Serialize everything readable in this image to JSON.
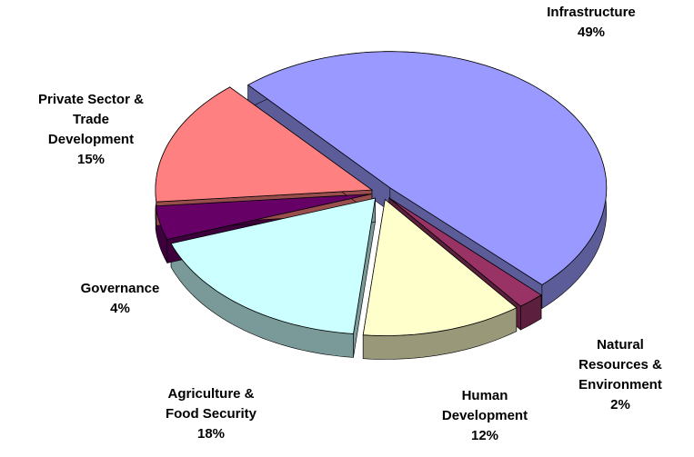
{
  "chart_data": {
    "type": "pie3d",
    "categories": [
      "Infrastructure",
      "Natural Resources & Environment",
      "Human Development",
      "Agriculture & Food Security",
      "Governance",
      "Private Sector & Trade Development"
    ],
    "values": [
      49,
      2,
      12,
      18,
      4,
      15
    ],
    "value_labels": [
      "49%",
      "2%",
      "12%",
      "18%",
      "4%",
      "15%"
    ],
    "colors": [
      "#9999ff",
      "#993366",
      "#ffffcc",
      "#ccffff",
      "#660066",
      "#ff8080"
    ]
  }
}
